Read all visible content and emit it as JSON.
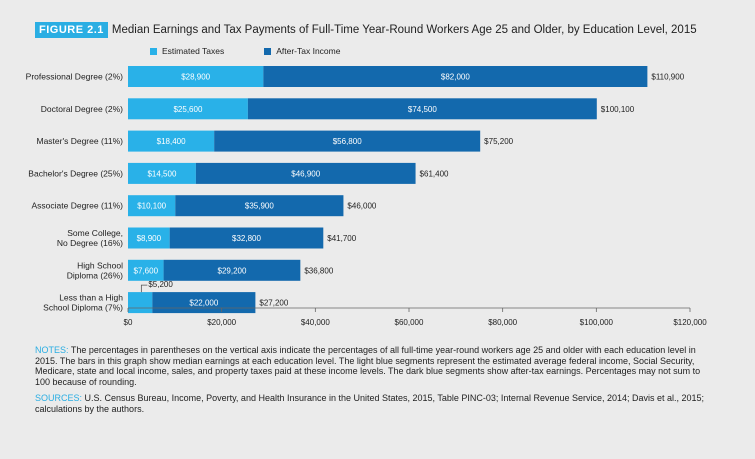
{
  "figure": {
    "label": "FIGURE 2.1",
    "title": "Median Earnings and Tax Payments of Full-Time Year-Round Workers Age 25 and Older, by Education Level, 2015"
  },
  "colors": {
    "taxes": "#29b1e8",
    "after_tax": "#1369ad",
    "accent": "#2aaee3"
  },
  "chart_data": {
    "type": "bar",
    "orientation": "horizontal",
    "stacked": true,
    "categories": [
      "Professional Degree (2%)",
      "Doctoral Degree (2%)",
      "Master's Degree (11%)",
      "Bachelor's Degree (25%)",
      "Associate Degree (11%)",
      "Some College, No Degree (16%)",
      "High School Diploma (26%)",
      "Less than a High School Diploma (7%)"
    ],
    "category_lines": [
      [
        "Professional Degree (2%)"
      ],
      [
        "Doctoral Degree (2%)"
      ],
      [
        "Master's Degree (11%)"
      ],
      [
        "Bachelor's Degree (25%)"
      ],
      [
        "Associate Degree (11%)"
      ],
      [
        "Some College,",
        "No Degree (16%)"
      ],
      [
        "High School",
        "Diploma (26%)"
      ],
      [
        "Less than a High",
        "School Diploma (7%)"
      ]
    ],
    "series": [
      {
        "name": "Estimated Taxes",
        "values": [
          28900,
          25600,
          18400,
          14500,
          10100,
          8900,
          7600,
          5200
        ],
        "labels": [
          "$28,900",
          "$25,600",
          "$18,400",
          "$14,500",
          "$10,100",
          "$8,900",
          "$7,600",
          "$5,200"
        ]
      },
      {
        "name": "After-Tax Income",
        "values": [
          82000,
          74500,
          56800,
          46900,
          35900,
          32800,
          29200,
          22000
        ],
        "labels": [
          "$82,000",
          "$74,500",
          "$56,800",
          "$46,900",
          "$35,900",
          "$32,800",
          "$29,200",
          "$22,000"
        ]
      }
    ],
    "totals": [
      110900,
      100100,
      75200,
      61400,
      46000,
      41700,
      36800,
      27200
    ],
    "total_labels": [
      "$110,900",
      "$100,100",
      "$75,200",
      "$61,400",
      "$46,000",
      "$41,700",
      "$36,800",
      "$27,200"
    ],
    "xlim": [
      0,
      120000
    ],
    "xticks": [
      0,
      20000,
      40000,
      60000,
      80000,
      100000,
      120000
    ],
    "xtick_labels": [
      "$0",
      "$20,000",
      "$40,000",
      "$60,000",
      "$80,000",
      "$100,000",
      "$120,000"
    ],
    "grid": false,
    "legend_position": "top-left"
  },
  "notes": {
    "notes_label": "NOTES:",
    "notes_text": "The percentages in parentheses on the vertical axis indicate the percentages of all full-time year-round workers age 25 and older with each education level in 2015. The bars in this graph show median earnings at each education level. The light blue segments represent the estimated average federal income, Social Security, Medicare, state and local income, sales, and property taxes paid at these income levels. The dark blue segments show after-tax earnings. Percentages may not sum to 100 because of rounding.",
    "sources_label": "SOURCES:",
    "sources_text": "U.S. Census Bureau, Income, Poverty, and Health Insurance in the United States, 2015, Table PINC-03; Internal Revenue Service, 2014; Davis et al., 2015; calculations by the authors."
  }
}
